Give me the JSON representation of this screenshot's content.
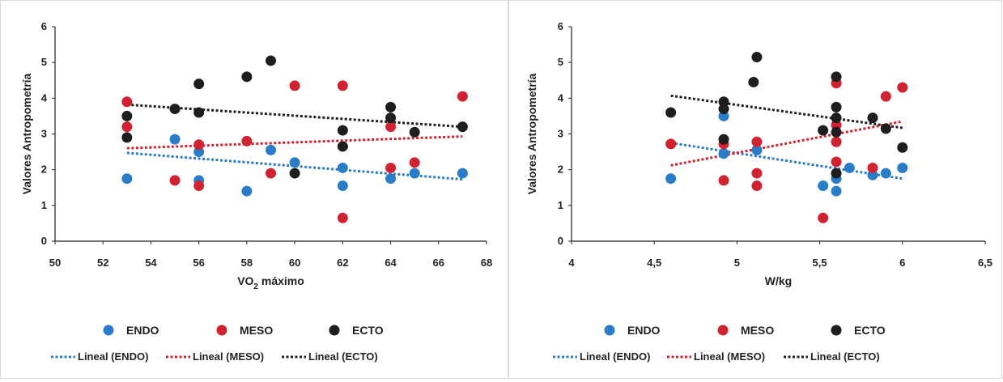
{
  "colors": {
    "ENDO": "#2a7cc7",
    "MESO": "#cf2331",
    "ECTO": "#1e1e1e"
  },
  "chart_data": [
    {
      "type": "scatter",
      "xlabel_main": "VO",
      "xlabel_sub": "2",
      "xlabel_rest": " máximo",
      "ylabel": "Valores Antropometría",
      "xlim": [
        50,
        68
      ],
      "ylim": [
        0,
        6
      ],
      "xticks": [
        50,
        52,
        54,
        56,
        58,
        60,
        62,
        64,
        66,
        68
      ],
      "xtick_labels": [
        "50",
        "52",
        "54",
        "56",
        "58",
        "60",
        "62",
        "64",
        "66",
        "68"
      ],
      "yticks": [
        0,
        1,
        2,
        3,
        4,
        5,
        6
      ],
      "ytick_labels": [
        "0",
        "1",
        "2",
        "3",
        "4",
        "5",
        "6"
      ],
      "legend_position": "bottom",
      "series": [
        {
          "name": "ENDO",
          "points": [
            [
              53,
              1.75
            ],
            [
              55,
              2.85
            ],
            [
              56,
              2.5
            ],
            [
              56,
              1.7
            ],
            [
              58,
              1.4
            ],
            [
              59,
              2.55
            ],
            [
              60,
              2.2
            ],
            [
              62,
              2.05
            ],
            [
              62,
              1.55
            ],
            [
              64,
              1.75
            ],
            [
              65,
              1.9
            ],
            [
              67,
              1.9
            ]
          ]
        },
        {
          "name": "MESO",
          "points": [
            [
              53,
              3.9
            ],
            [
              53,
              3.2
            ],
            [
              55,
              1.7
            ],
            [
              56,
              2.7
            ],
            [
              56,
              1.55
            ],
            [
              58,
              2.8
            ],
            [
              59,
              1.9
            ],
            [
              60,
              4.35
            ],
            [
              62,
              4.35
            ],
            [
              62,
              0.65
            ],
            [
              64,
              3.2
            ],
            [
              64,
              2.05
            ],
            [
              65,
              2.2
            ],
            [
              67,
              4.05
            ]
          ]
        },
        {
          "name": "ECTO",
          "points": [
            [
              53,
              3.5
            ],
            [
              53,
              2.9
            ],
            [
              55,
              3.7
            ],
            [
              56,
              4.4
            ],
            [
              56,
              3.6
            ],
            [
              58,
              4.6
            ],
            [
              59,
              5.05
            ],
            [
              60,
              1.9
            ],
            [
              62,
              3.1
            ],
            [
              62,
              2.65
            ],
            [
              64,
              3.75
            ],
            [
              64,
              3.45
            ],
            [
              65,
              3.05
            ],
            [
              67,
              3.2
            ]
          ]
        }
      ],
      "trendlines": [
        {
          "name": "Lineal (ENDO)",
          "x": [
            53,
            67
          ],
          "y": [
            2.47,
            1.73
          ]
        },
        {
          "name": "Lineal (MESO)",
          "x": [
            53,
            67
          ],
          "y": [
            2.6,
            2.93
          ]
        },
        {
          "name": "Lineal (ECTO)",
          "x": [
            53,
            67
          ],
          "y": [
            3.82,
            3.2
          ]
        }
      ]
    },
    {
      "type": "scatter",
      "xlabel_main": "W/kg",
      "xlabel_sub": "",
      "xlabel_rest": "",
      "ylabel": "Valores Antropometría",
      "xlim": [
        4,
        6.5
      ],
      "ylim": [
        0,
        6
      ],
      "xticks": [
        4,
        4.5,
        5,
        5.5,
        6,
        6.5
      ],
      "xtick_labels": [
        "4",
        "4,5",
        "5",
        "5,5",
        "6",
        "6,5"
      ],
      "yticks": [
        0,
        1,
        2,
        3,
        4,
        5,
        6
      ],
      "ytick_labels": [
        "0",
        "1",
        "2",
        "3",
        "4",
        "5",
        "6"
      ],
      "legend_position": "bottom",
      "series": [
        {
          "name": "ENDO",
          "points": [
            [
              4.6,
              1.75
            ],
            [
              4.92,
              3.5
            ],
            [
              4.92,
              2.45
            ],
            [
              5.12,
              2.55
            ],
            [
              5.52,
              1.55
            ],
            [
              5.6,
              1.4
            ],
            [
              5.6,
              1.75
            ],
            [
              5.68,
              2.05
            ],
            [
              5.82,
              1.85
            ],
            [
              5.9,
              1.9
            ],
            [
              6.0,
              2.05
            ]
          ]
        },
        {
          "name": "MESO",
          "points": [
            [
              4.6,
              2.72
            ],
            [
              4.92,
              2.72
            ],
            [
              4.92,
              1.7
            ],
            [
              5.12,
              2.78
            ],
            [
              5.12,
              1.9
            ],
            [
              5.12,
              1.55
            ],
            [
              5.52,
              0.65
            ],
            [
              5.6,
              4.42
            ],
            [
              5.6,
              3.25
            ],
            [
              5.6,
              2.78
            ],
            [
              5.6,
              2.22
            ],
            [
              5.82,
              2.05
            ],
            [
              5.9,
              4.05
            ],
            [
              6.0,
              4.3
            ]
          ]
        },
        {
          "name": "ECTO",
          "points": [
            [
              4.6,
              3.6
            ],
            [
              4.92,
              3.9
            ],
            [
              4.92,
              3.7
            ],
            [
              4.92,
              2.85
            ],
            [
              5.1,
              4.45
            ],
            [
              5.12,
              5.15
            ],
            [
              5.52,
              3.1
            ],
            [
              5.6,
              4.6
            ],
            [
              5.6,
              3.75
            ],
            [
              5.6,
              3.45
            ],
            [
              5.6,
              3.05
            ],
            [
              5.6,
              1.9
            ],
            [
              5.82,
              3.45
            ],
            [
              5.9,
              3.15
            ],
            [
              6.0,
              2.62
            ]
          ]
        }
      ],
      "trendlines": [
        {
          "name": "Lineal (ENDO)",
          "x": [
            4.6,
            6.0
          ],
          "y": [
            2.75,
            1.75
          ]
        },
        {
          "name": "Lineal (MESO)",
          "x": [
            4.6,
            6.0
          ],
          "y": [
            2.12,
            3.35
          ]
        },
        {
          "name": "Lineal (ECTO)",
          "x": [
            4.6,
            6.0
          ],
          "y": [
            4.07,
            3.17
          ]
        }
      ]
    }
  ]
}
